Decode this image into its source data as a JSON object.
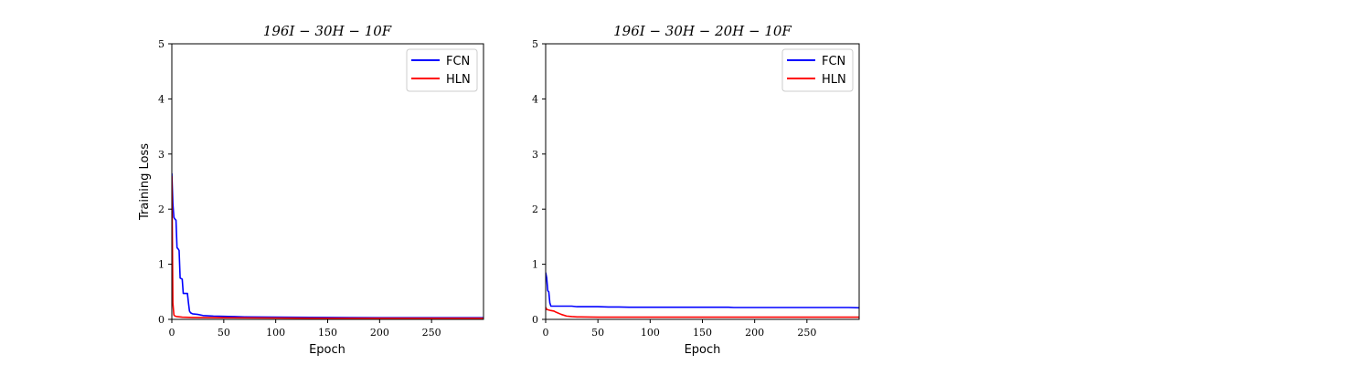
{
  "chart_data": [
    {
      "type": "line",
      "title": "196I − 30H − 10F",
      "xlabel": "Epoch",
      "ylabel": "Training Loss",
      "xlim": [
        0,
        300
      ],
      "ylim": [
        0,
        5
      ],
      "xticks": [
        0,
        50,
        100,
        150,
        200,
        250
      ],
      "yticks": [
        0,
        1,
        2,
        3,
        4,
        5
      ],
      "legend_position": "top-right",
      "series": [
        {
          "name": "FCN",
          "color": "#0000ff",
          "x": [
            0,
            1,
            2,
            3,
            4,
            5,
            6,
            7,
            8,
            9,
            10,
            11,
            12,
            13,
            14,
            15,
            16,
            17,
            18,
            19,
            20,
            25,
            30,
            40,
            50,
            60,
            70,
            100,
            150,
            200,
            250,
            300
          ],
          "y": [
            2.65,
            2.1,
            1.85,
            1.82,
            1.8,
            1.3,
            1.28,
            1.25,
            0.75,
            0.74,
            0.73,
            0.47,
            0.47,
            0.47,
            0.47,
            0.47,
            0.3,
            0.15,
            0.12,
            0.11,
            0.1,
            0.09,
            0.07,
            0.06,
            0.055,
            0.05,
            0.045,
            0.04,
            0.035,
            0.03,
            0.03,
            0.03
          ]
        },
        {
          "name": "HLN",
          "color": "#ff0000",
          "x": [
            0,
            0.5,
            1,
            2,
            3,
            5,
            10,
            20,
            50,
            100,
            150,
            200,
            250,
            300
          ],
          "y": [
            2.6,
            1.5,
            0.3,
            0.08,
            0.06,
            0.05,
            0.04,
            0.035,
            0.03,
            0.025,
            0.02,
            0.02,
            0.02,
            0.02
          ]
        }
      ]
    },
    {
      "type": "line",
      "title": "196I − 30H − 20H − 10F",
      "xlabel": "Epoch",
      "ylabel": "",
      "xlim": [
        0,
        300
      ],
      "ylim": [
        0,
        5
      ],
      "xticks": [
        0,
        50,
        100,
        150,
        200,
        250
      ],
      "yticks": [
        0,
        1,
        2,
        3,
        4,
        5
      ],
      "legend_position": "top-right",
      "series": [
        {
          "name": "FCN",
          "color": "#0000ff",
          "x": [
            0,
            1,
            2,
            3,
            4,
            5,
            6,
            10,
            20,
            25,
            30,
            50,
            60,
            70,
            80,
            100,
            150,
            175,
            180,
            200,
            250,
            290,
            300
          ],
          "y": [
            0.85,
            0.75,
            0.52,
            0.5,
            0.3,
            0.24,
            0.24,
            0.24,
            0.24,
            0.24,
            0.23,
            0.23,
            0.225,
            0.225,
            0.22,
            0.22,
            0.22,
            0.22,
            0.215,
            0.215,
            0.215,
            0.215,
            0.21
          ]
        },
        {
          "name": "HLN",
          "color": "#ff0000",
          "x": [
            0,
            1,
            3,
            5,
            8,
            10,
            15,
            20,
            25,
            30,
            50,
            100,
            150,
            200,
            250,
            300
          ],
          "y": [
            0.22,
            0.18,
            0.17,
            0.16,
            0.15,
            0.13,
            0.09,
            0.06,
            0.05,
            0.045,
            0.04,
            0.04,
            0.04,
            0.04,
            0.04,
            0.04
          ]
        }
      ]
    }
  ]
}
